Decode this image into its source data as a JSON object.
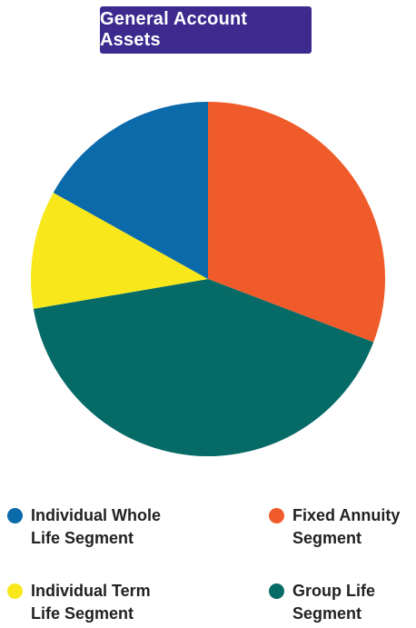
{
  "title": "General Account Assets",
  "colors": {
    "title_background": "#3d2a8f",
    "whole_life": "#0a6aaa",
    "fixed_annuity": "#ef5b2a",
    "group_life": "#066a66",
    "term_life": "#f8e81b"
  },
  "chart_data": {
    "type": "pie",
    "title": "General Account Assets",
    "slices": [
      {
        "label": "Fixed Annuity Segment",
        "value": 30.8,
        "color": "#ef5b2a"
      },
      {
        "label": "Group Life Segment",
        "value": 41.5,
        "color": "#066a66"
      },
      {
        "label": "Individual Term Life Segment",
        "value": 10.8,
        "color": "#f8e81b"
      },
      {
        "label": "Individual Whole Life Segment",
        "value": 16.9,
        "color": "#0a6aaa"
      }
    ],
    "unit": "percent",
    "start_angle": "12 o'clock, clockwise",
    "legend_placement": "bottom"
  },
  "legend": [
    {
      "label": "Individual Whole\nLife Segment",
      "color": "#0a6aaa"
    },
    {
      "label": "Fixed Annuity\nSegment",
      "color": "#ef5b2a"
    },
    {
      "label": "Individual Term\nLife Segment",
      "color": "#f8e81b"
    },
    {
      "label": "Group Life\nSegment",
      "color": "#066a66"
    }
  ]
}
